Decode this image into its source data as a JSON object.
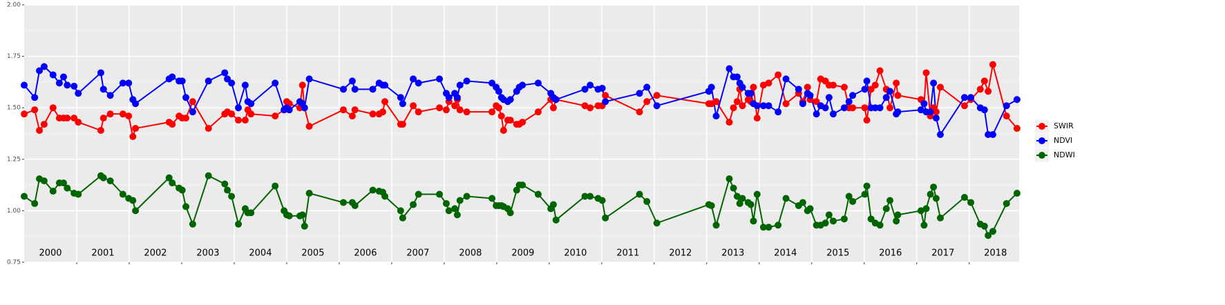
{
  "chart_data": {
    "type": "line",
    "x": [
      2000.0,
      2000.2,
      2000.29,
      2000.38,
      2000.55,
      2000.67,
      2000.75,
      2000.82,
      2000.95,
      2001.03,
      2001.46,
      2001.51,
      2001.64,
      2001.88,
      2001.99,
      2002.07,
      2002.12,
      2002.76,
      2002.82,
      2002.95,
      2003.01,
      2003.08,
      2003.21,
      2003.51,
      2003.82,
      2003.87,
      2003.95,
      2004.08,
      2004.21,
      2004.26,
      2004.32,
      2004.78,
      2004.95,
      2005.0,
      2005.05,
      2005.25,
      2005.3,
      2005.34,
      2005.43,
      2006.08,
      2006.25,
      2006.3,
      2006.64,
      2006.76,
      2006.83,
      2006.87,
      2007.17,
      2007.21,
      2007.41,
      2007.51,
      2007.91,
      2008.04,
      2008.09,
      2008.2,
      2008.25,
      2008.3,
      2008.43,
      2008.91,
      2008.99,
      2009.04,
      2009.09,
      2009.13,
      2009.21,
      2009.26,
      2009.38,
      2009.43,
      2009.49,
      2009.79,
      2010.03,
      2010.08,
      2010.13,
      2010.68,
      2010.78,
      2010.93,
      2011.01,
      2011.07,
      2011.72,
      2011.86,
      2012.05,
      2013.04,
      2013.09,
      2013.18,
      2013.43,
      2013.51,
      2013.58,
      2013.63,
      2013.68,
      2013.79,
      2013.84,
      2013.89,
      2013.96,
      2014.08,
      2014.18,
      2014.36,
      2014.51,
      2014.75,
      2014.83,
      2014.92,
      2014.97,
      2015.09,
      2015.17,
      2015.26,
      2015.33,
      2015.41,
      2015.62,
      2015.71,
      2015.78,
      2016.01,
      2016.05,
      2016.13,
      2016.21,
      2016.3,
      2016.42,
      2016.49,
      2016.61,
      2016.64,
      2017.08,
      2017.14,
      2017.18,
      2017.26,
      2017.32,
      2017.37,
      2017.45,
      2017.91,
      2018.03,
      2018.21,
      2018.29,
      2018.36,
      2018.45,
      2018.71,
      2018.91
    ],
    "series": [
      {
        "name": "SWIR",
        "color": "#ff0000",
        "values": [
          1.47,
          1.49,
          1.39,
          1.42,
          1.5,
          1.45,
          1.45,
          1.45,
          1.45,
          1.43,
          1.39,
          1.45,
          1.47,
          1.47,
          1.46,
          1.36,
          1.4,
          1.43,
          1.42,
          1.46,
          1.45,
          1.45,
          1.53,
          1.4,
          1.47,
          1.48,
          1.47,
          1.44,
          1.44,
          1.49,
          1.47,
          1.46,
          1.49,
          1.53,
          1.52,
          1.5,
          1.61,
          1.5,
          1.41,
          1.49,
          1.46,
          1.49,
          1.47,
          1.47,
          1.48,
          1.53,
          1.42,
          1.42,
          1.51,
          1.48,
          1.5,
          1.49,
          1.53,
          1.51,
          1.54,
          1.49,
          1.48,
          1.48,
          1.51,
          1.5,
          1.46,
          1.39,
          1.44,
          1.44,
          1.42,
          1.42,
          1.43,
          1.48,
          1.54,
          1.5,
          1.54,
          1.51,
          1.5,
          1.51,
          1.51,
          1.56,
          1.48,
          1.53,
          1.56,
          1.52,
          1.52,
          1.53,
          1.43,
          1.5,
          1.53,
          1.59,
          1.51,
          1.54,
          1.53,
          1.6,
          1.45,
          1.61,
          1.62,
          1.66,
          1.52,
          1.57,
          1.53,
          1.6,
          1.54,
          1.53,
          1.64,
          1.63,
          1.61,
          1.61,
          1.6,
          1.5,
          1.5,
          1.5,
          1.44,
          1.59,
          1.61,
          1.68,
          1.59,
          1.5,
          1.62,
          1.56,
          1.54,
          1.52,
          1.67,
          1.46,
          1.5,
          1.48,
          1.6,
          1.51,
          1.54,
          1.59,
          1.63,
          1.58,
          1.71,
          1.46,
          1.4
        ]
      },
      {
        "name": "NDVI",
        "color": "#0000ff",
        "values": [
          1.61,
          1.55,
          1.68,
          1.7,
          1.66,
          1.62,
          1.65,
          1.61,
          1.605,
          1.57,
          1.67,
          1.59,
          1.56,
          1.62,
          1.62,
          1.54,
          1.52,
          1.64,
          1.65,
          1.63,
          1.63,
          1.55,
          1.48,
          1.63,
          1.67,
          1.64,
          1.62,
          1.5,
          1.61,
          1.53,
          1.52,
          1.62,
          1.49,
          1.5,
          1.49,
          1.53,
          1.52,
          1.5,
          1.64,
          1.59,
          1.63,
          1.59,
          1.59,
          1.62,
          1.61,
          1.61,
          1.55,
          1.52,
          1.64,
          1.62,
          1.64,
          1.57,
          1.55,
          1.57,
          1.55,
          1.61,
          1.63,
          1.62,
          1.6,
          1.58,
          1.55,
          1.54,
          1.53,
          1.54,
          1.58,
          1.6,
          1.61,
          1.62,
          1.57,
          1.55,
          1.54,
          1.59,
          1.61,
          1.59,
          1.595,
          1.53,
          1.57,
          1.6,
          1.51,
          1.58,
          1.6,
          1.46,
          1.69,
          1.65,
          1.65,
          1.62,
          1.6,
          1.57,
          1.57,
          1.52,
          1.51,
          1.51,
          1.51,
          1.48,
          1.64,
          1.59,
          1.52,
          1.57,
          1.56,
          1.47,
          1.51,
          1.5,
          1.55,
          1.47,
          1.5,
          1.53,
          1.56,
          1.59,
          1.63,
          1.5,
          1.5,
          1.5,
          1.55,
          1.58,
          1.47,
          1.48,
          1.49,
          1.52,
          1.48,
          1.48,
          1.62,
          1.45,
          1.37,
          1.55,
          1.55,
          1.5,
          1.49,
          1.37,
          1.37,
          1.51,
          1.54
        ]
      },
      {
        "name": "NDWI",
        "color": "#006400",
        "values": [
          1.07,
          1.035,
          1.155,
          1.145,
          1.095,
          1.135,
          1.135,
          1.11,
          1.085,
          1.08,
          1.17,
          1.16,
          1.145,
          1.08,
          1.06,
          1.05,
          1.0,
          1.16,
          1.135,
          1.11,
          1.1,
          1.02,
          0.935,
          1.17,
          1.13,
          1.1,
          1.07,
          0.935,
          1.01,
          0.99,
          0.99,
          1.12,
          1.0,
          0.98,
          0.975,
          0.975,
          0.98,
          0.925,
          1.085,
          1.04,
          1.04,
          1.025,
          1.1,
          1.095,
          1.09,
          1.07,
          1.0,
          0.965,
          1.03,
          1.08,
          1.08,
          1.035,
          1.0,
          1.01,
          0.98,
          1.05,
          1.07,
          1.06,
          1.025,
          1.025,
          1.025,
          1.02,
          1.01,
          0.99,
          1.1,
          1.125,
          1.125,
          1.08,
          1.01,
          1.03,
          0.955,
          1.07,
          1.07,
          1.06,
          1.05,
          0.965,
          1.08,
          1.045,
          0.94,
          1.03,
          1.025,
          0.93,
          1.155,
          1.11,
          1.07,
          1.035,
          1.06,
          1.04,
          1.03,
          0.95,
          1.08,
          0.92,
          0.92,
          0.93,
          1.06,
          1.025,
          1.04,
          1.0,
          1.01,
          0.93,
          0.93,
          0.94,
          0.98,
          0.95,
          0.96,
          1.07,
          1.045,
          1.08,
          1.12,
          0.96,
          0.94,
          0.93,
          1.01,
          1.05,
          0.95,
          0.98,
          1.0,
          0.93,
          1.01,
          1.08,
          1.115,
          1.06,
          0.965,
          1.065,
          1.04,
          0.935,
          0.925,
          0.88,
          0.9,
          1.035,
          1.085
        ]
      }
    ],
    "year_labels": [
      "2000",
      "2001",
      "2002",
      "2003",
      "2004",
      "2005",
      "2006",
      "2007",
      "2008",
      "2009",
      "2010",
      "2011",
      "2012",
      "2013",
      "2014",
      "2015",
      "2016",
      "2017",
      "2018"
    ],
    "xlim": [
      2000,
      2018.95
    ],
    "xticks": [
      2001,
      2002,
      2003,
      2004,
      2005,
      2006,
      2007,
      2008,
      2009,
      2010,
      2011,
      2012,
      2013,
      2014,
      2015,
      2016,
      2017,
      2018
    ],
    "ylim": [
      0.75,
      2.0
    ],
    "yticks": [
      {
        "value": 0.75,
        "label": "0.75"
      },
      {
        "value": 1,
        "label": "1.00"
      },
      {
        "value": 1.25,
        "label": "1.25"
      },
      {
        "value": 1.5,
        "label": "1.50"
      },
      {
        "value": 1.75,
        "label": "1.75"
      },
      {
        "value": 2,
        "label": "2.00"
      }
    ],
    "y_minor_ticks": [
      0.875,
      1.125,
      1.375,
      1.625,
      1.875
    ],
    "grid": true,
    "legend": "right"
  }
}
